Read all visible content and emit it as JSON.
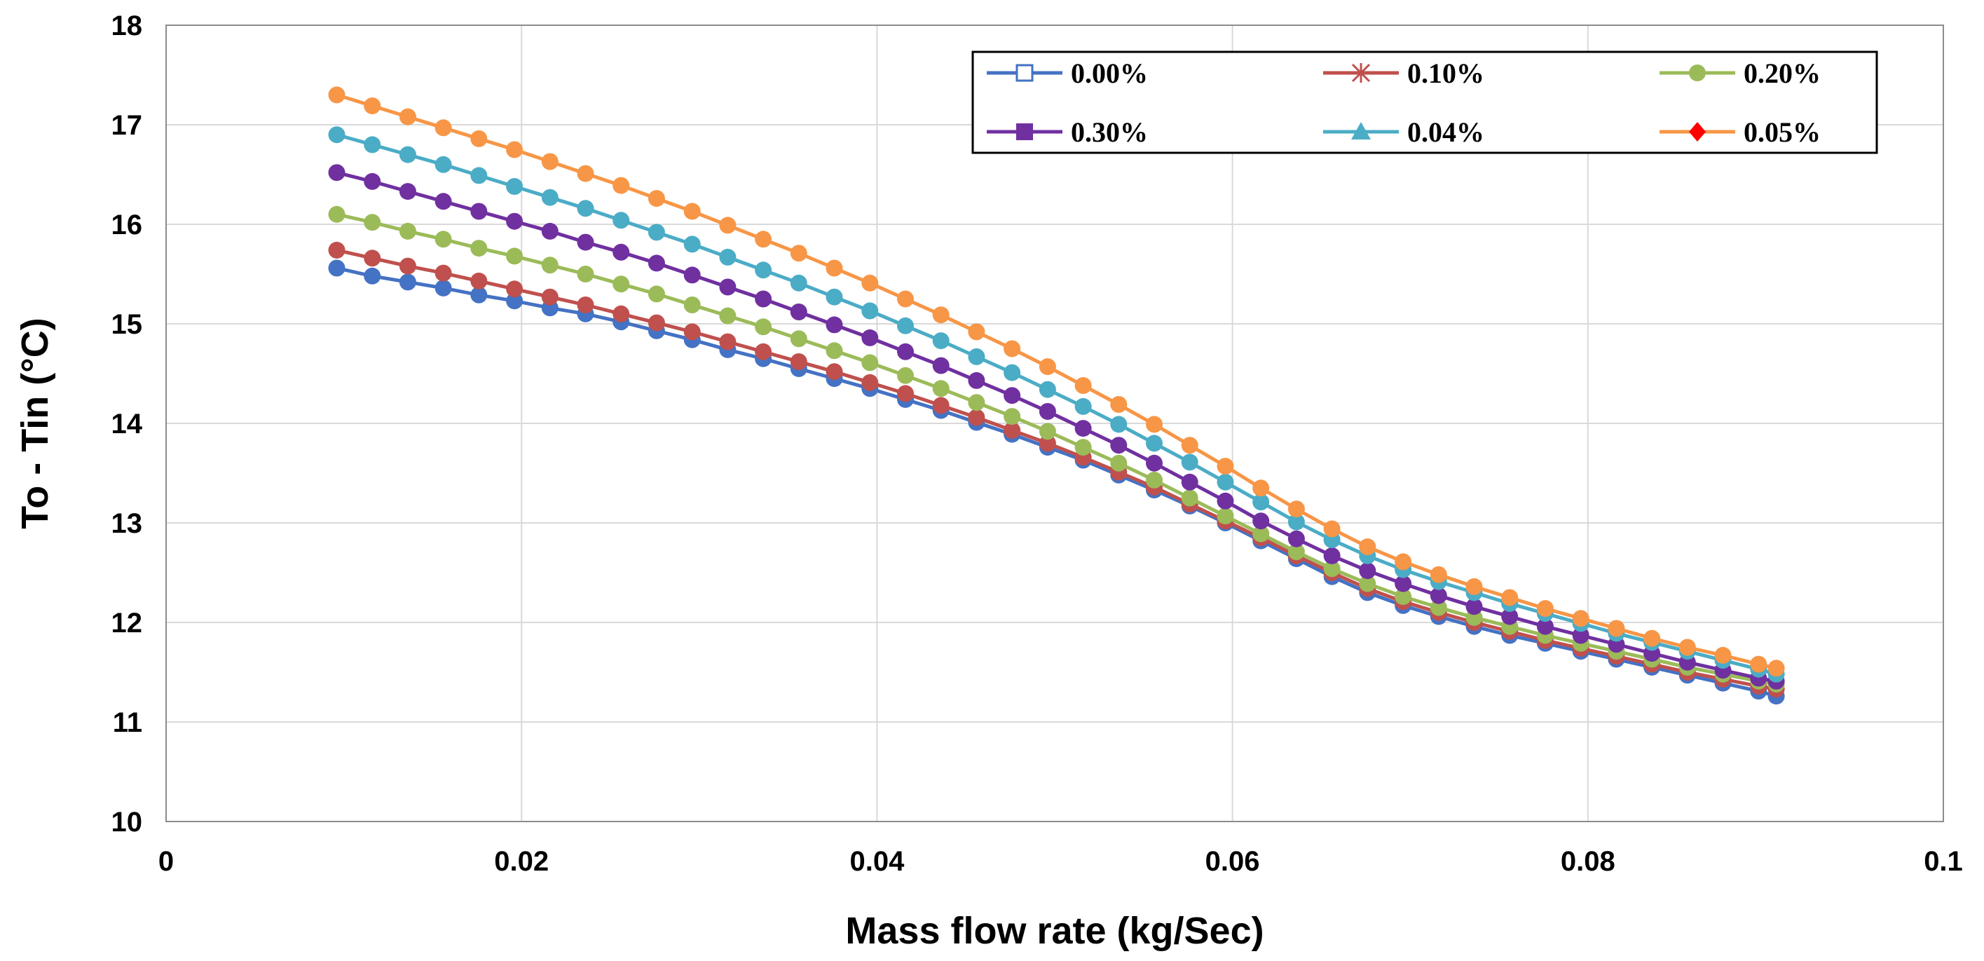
{
  "chart_data": {
    "type": "line",
    "title": "",
    "xlabel": "Mass flow rate (kg/Sec)",
    "ylabel": "To - Tin (°C)",
    "xlim": [
      0,
      0.1
    ],
    "ylim": [
      10,
      18
    ],
    "grid": true,
    "legend_position": "top-right",
    "x_ticks": [
      {
        "value": 0,
        "label": "0"
      },
      {
        "value": 0.02,
        "label": "0.02"
      },
      {
        "value": 0.04,
        "label": "0.04"
      },
      {
        "value": 0.06,
        "label": "0.06"
      },
      {
        "value": 0.08,
        "label": "0.08"
      },
      {
        "value": 0.1,
        "label": "0.1"
      }
    ],
    "y_ticks": [
      {
        "value": 10,
        "label": "10"
      },
      {
        "value": 11,
        "label": "11"
      },
      {
        "value": 12,
        "label": "12"
      },
      {
        "value": 13,
        "label": "13"
      },
      {
        "value": 14,
        "label": "14"
      },
      {
        "value": 15,
        "label": "15"
      },
      {
        "value": 16,
        "label": "16"
      },
      {
        "value": 17,
        "label": "17"
      },
      {
        "value": 18,
        "label": "18"
      }
    ],
    "x": [
      0.0096,
      0.0116,
      0.0136,
      0.0156,
      0.0176,
      0.0196,
      0.0216,
      0.0236,
      0.0256,
      0.0276,
      0.0296,
      0.0316,
      0.0336,
      0.0356,
      0.0376,
      0.0396,
      0.0416,
      0.0436,
      0.0456,
      0.0476,
      0.0496,
      0.0516,
      0.0536,
      0.0556,
      0.0576,
      0.0596,
      0.0616,
      0.0636,
      0.0656,
      0.0676,
      0.0696,
      0.0716,
      0.0736,
      0.0756,
      0.0776,
      0.0796,
      0.0816,
      0.0836,
      0.0856,
      0.0876,
      0.0896,
      0.0906
    ],
    "series": [
      {
        "name": "0.00%",
        "color": "#4472C4",
        "legend_marker": "open-square",
        "values": [
          15.56,
          15.48,
          15.42,
          15.36,
          15.29,
          15.23,
          15.16,
          15.1,
          15.02,
          14.93,
          14.84,
          14.74,
          14.65,
          14.55,
          14.45,
          14.35,
          14.24,
          14.13,
          14.01,
          13.89,
          13.76,
          13.63,
          13.48,
          13.33,
          13.17,
          13.0,
          12.82,
          12.64,
          12.46,
          12.3,
          12.17,
          12.06,
          11.96,
          11.87,
          11.79,
          11.71,
          11.63,
          11.55,
          11.47,
          11.39,
          11.31,
          11.26
        ]
      },
      {
        "name": "0.10%",
        "color": "#C0504D",
        "legend_marker": "star",
        "values": [
          15.74,
          15.66,
          15.58,
          15.51,
          15.43,
          15.35,
          15.27,
          15.19,
          15.1,
          15.01,
          14.92,
          14.82,
          14.72,
          14.62,
          14.52,
          14.41,
          14.3,
          14.18,
          14.06,
          13.93,
          13.8,
          13.66,
          13.51,
          13.36,
          13.19,
          13.02,
          12.85,
          12.67,
          12.5,
          12.34,
          12.21,
          12.1,
          12.0,
          11.91,
          11.82,
          11.74,
          11.66,
          11.58,
          11.5,
          11.43,
          11.36,
          11.33
        ]
      },
      {
        "name": "0.20%",
        "color": "#9BBB59",
        "legend_marker": "circle",
        "values": [
          16.1,
          16.02,
          15.93,
          15.85,
          15.76,
          15.68,
          15.59,
          15.5,
          15.4,
          15.3,
          15.19,
          15.08,
          14.97,
          14.85,
          14.73,
          14.61,
          14.48,
          14.35,
          14.21,
          14.07,
          13.92,
          13.76,
          13.6,
          13.43,
          13.25,
          13.07,
          12.89,
          12.71,
          12.54,
          12.39,
          12.26,
          12.15,
          12.05,
          11.96,
          11.87,
          11.79,
          11.71,
          11.63,
          11.55,
          11.48,
          11.41,
          11.38
        ]
      },
      {
        "name": "0.30%",
        "color": "#7030A0",
        "legend_marker": "filled-square",
        "values": [
          16.52,
          16.43,
          16.33,
          16.23,
          16.13,
          16.03,
          15.93,
          15.82,
          15.72,
          15.61,
          15.49,
          15.37,
          15.25,
          15.12,
          14.99,
          14.86,
          14.72,
          14.58,
          14.43,
          14.28,
          14.12,
          13.95,
          13.78,
          13.6,
          13.41,
          13.22,
          13.02,
          12.84,
          12.67,
          12.52,
          12.39,
          12.27,
          12.16,
          12.06,
          11.96,
          11.87,
          11.78,
          11.69,
          11.6,
          11.52,
          11.44,
          11.41
        ]
      },
      {
        "name": "0.04%",
        "color": "#4BACC6",
        "legend_marker": "triangle",
        "values": [
          16.9,
          16.8,
          16.7,
          16.6,
          16.49,
          16.38,
          16.27,
          16.16,
          16.04,
          15.92,
          15.8,
          15.67,
          15.54,
          15.41,
          15.27,
          15.13,
          14.98,
          14.83,
          14.67,
          14.51,
          14.34,
          14.17,
          13.99,
          13.8,
          13.61,
          13.41,
          13.21,
          13.01,
          12.83,
          12.67,
          12.53,
          12.41,
          12.3,
          12.19,
          12.09,
          11.99,
          11.89,
          11.8,
          11.71,
          11.62,
          11.53,
          11.48
        ]
      },
      {
        "name": "0.05%",
        "color": "#F79646",
        "legend_marker": "diamond",
        "values": [
          17.3,
          17.19,
          17.08,
          16.97,
          16.86,
          16.75,
          16.63,
          16.51,
          16.39,
          16.26,
          16.13,
          15.99,
          15.85,
          15.71,
          15.56,
          15.41,
          15.25,
          15.09,
          14.92,
          14.75,
          14.57,
          14.38,
          14.19,
          13.99,
          13.78,
          13.57,
          13.35,
          13.14,
          12.94,
          12.76,
          12.61,
          12.48,
          12.36,
          12.25,
          12.14,
          12.04,
          11.94,
          11.84,
          11.75,
          11.67,
          11.58,
          11.54
        ]
      }
    ],
    "legend_marker_color_05": "#FF0000"
  }
}
